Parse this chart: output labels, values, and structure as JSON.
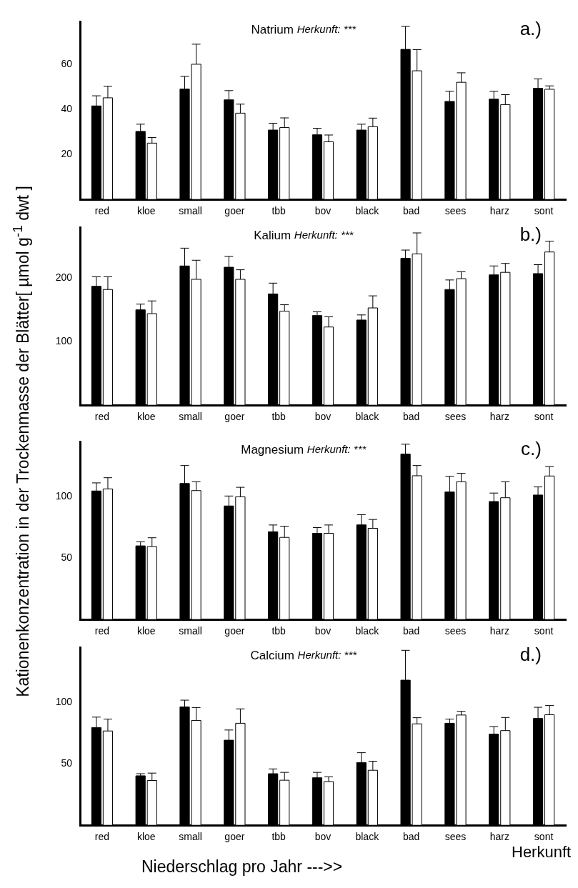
{
  "chart_data": [
    {
      "type": "bar",
      "title": "Natrium",
      "subtitle": "Herkunft: ***",
      "ylabel": "Kationenkonzentration in der Trockenmasse der Blätter[ µmol g$^{-1}$ dwt ]",
      "annotations": [
        "a.)"
      ],
      "categories": [
        "red",
        "kloe",
        "small",
        "goer",
        "tbb",
        "bov",
        "black",
        "bad",
        "sees",
        "harz",
        "sont"
      ],
      "ylim": [
        0,
        79
      ],
      "yticks": [
        20,
        40,
        60
      ],
      "grid": false,
      "legend": false,
      "series": [
        {
          "color": "#000000",
          "values": [
            41.5,
            30.2,
            49,
            44.2,
            30.8,
            28.7,
            30.8,
            66.6,
            43.5,
            44.5,
            49.3
          ],
          "errors": [
            [
              41.5,
              46
            ],
            [
              30.2,
              33.4
            ],
            [
              49,
              54.6
            ],
            [
              44.2,
              48.3
            ],
            [
              30.8,
              33.8
            ],
            [
              28.7,
              31.6
            ],
            [
              30.8,
              33.4
            ],
            [
              66.6,
              76.8
            ],
            [
              43.5,
              48
            ],
            [
              44.5,
              48
            ],
            [
              49.3,
              53.5
            ]
          ]
        },
        {
          "color": "#ffffff",
          "values": [
            45.1,
            25,
            60,
            38.3,
            31.9,
            25.6,
            32.3,
            57.1,
            52,
            42.1,
            48.9
          ],
          "errors": [
            [
              45.1,
              50.2
            ],
            [
              25,
              27.5
            ],
            [
              60,
              68.9
            ],
            [
              38.3,
              42.3
            ],
            [
              31.9,
              36.2
            ],
            [
              25.6,
              28.6
            ],
            [
              32.3,
              36.1
            ],
            [
              57.1,
              66.5
            ],
            [
              52,
              56.2
            ],
            [
              42.1,
              46.5
            ],
            [
              48.9,
              50.4
            ]
          ]
        }
      ]
    },
    {
      "type": "bar",
      "title": "Kalium",
      "subtitle": "Herkunft: ***",
      "annotations": [
        "b.)"
      ],
      "categories": [
        "red",
        "kloe",
        "small",
        "goer",
        "tbb",
        "bov",
        "black",
        "bad",
        "sees",
        "harz",
        "sont"
      ],
      "ylim": [
        0,
        280
      ],
      "yticks": [
        100,
        200
      ],
      "grid": false,
      "legend": false,
      "series": [
        {
          "color": "#000000",
          "values": [
            187,
            150,
            219,
            217,
            175,
            141,
            134,
            231,
            182,
            205,
            207
          ],
          "errors": [
            [
              187,
              202
            ],
            [
              150,
              159
            ],
            [
              219,
              247
            ],
            [
              217,
              234
            ],
            [
              175,
              192
            ],
            [
              141,
              147
            ],
            [
              134,
              142
            ],
            [
              231,
              244
            ],
            [
              182,
              197
            ],
            [
              205,
              219
            ],
            [
              207,
              221
            ]
          ]
        },
        {
          "color": "#ffffff",
          "values": [
            182,
            144,
            198,
            198,
            148,
            123,
            153,
            238,
            199,
            209,
            241
          ],
          "errors": [
            [
              182,
              202
            ],
            [
              144,
              164
            ],
            [
              198,
              228
            ],
            [
              198,
              213
            ],
            [
              148,
              158
            ],
            [
              123,
              139
            ],
            [
              153,
              172
            ],
            [
              238,
              271
            ],
            [
              199,
              210
            ],
            [
              209,
              223
            ],
            [
              241,
              258
            ]
          ]
        }
      ]
    },
    {
      "type": "bar",
      "title": "Magnesium",
      "subtitle": "Herkunft: ***",
      "annotations": [
        "c.)"
      ],
      "categories": [
        "red",
        "kloe",
        "small",
        "goer",
        "tbb",
        "bov",
        "black",
        "bad",
        "sees",
        "harz",
        "sont"
      ],
      "ylim": [
        0,
        145
      ],
      "yticks": [
        50,
        100
      ],
      "grid": false,
      "legend": false,
      "series": [
        {
          "color": "#000000",
          "values": [
            104.7,
            60,
            110.8,
            92.5,
            71.5,
            70.2,
            77.1,
            134.8,
            103.9,
            96.1,
            101.4
          ],
          "errors": [
            [
              104.7,
              111.3
            ],
            [
              60,
              63.3
            ],
            [
              110.8,
              125.4
            ],
            [
              92.5,
              100.6
            ],
            [
              71.5,
              77
            ],
            [
              70.2,
              74.9
            ],
            [
              77.1,
              85.4
            ],
            [
              134.8,
              142.8
            ],
            [
              103.9,
              116.6
            ],
            [
              96.1,
              103
            ],
            [
              101.4,
              108
            ]
          ]
        },
        {
          "color": "#ffffff",
          "values": [
            106.4,
            59.4,
            105,
            100,
            66.9,
            70.2,
            74.3,
            117.1,
            112.2,
            99.2,
            116.9
          ],
          "errors": [
            [
              106.4,
              115.5
            ],
            [
              59.4,
              66.6
            ],
            [
              105,
              112.2
            ],
            [
              100,
              107.7
            ],
            [
              66.9,
              76
            ],
            [
              70.2,
              77
            ],
            [
              74.3,
              81.5
            ],
            [
              117.1,
              125.4
            ],
            [
              112.2,
              119
            ],
            [
              99.2,
              112.2
            ],
            [
              116.9,
              124.6
            ]
          ]
        }
      ]
    },
    {
      "type": "bar",
      "title": "Calcium",
      "subtitle": "Herkunft: ***",
      "xlabel": "Niederschlag pro Jahr --->>",
      "annotations": [
        "d.)",
        "Herkunft"
      ],
      "categories": [
        "red",
        "kloe",
        "small",
        "goer",
        "tbb",
        "bov",
        "black",
        "bad",
        "sees",
        "harz",
        "sont"
      ],
      "ylim": [
        0,
        145
      ],
      "yticks": [
        50,
        100
      ],
      "grid": false,
      "legend": false,
      "series": [
        {
          "color": "#000000",
          "values": [
            79.6,
            40.3,
            96.4,
            69.3,
            42,
            38.7,
            51.1,
            118.2,
            83.1,
            74.3,
            87
          ],
          "errors": [
            [
              79.6,
              88.1
            ],
            [
              40.3,
              42
            ],
            [
              96.4,
              101.9
            ],
            [
              69.3,
              77.6
            ],
            [
              42,
              45.9
            ],
            [
              38.7,
              43.1
            ],
            [
              51.1,
              59.1
            ],
            [
              118.2,
              142.5
            ],
            [
              83.1,
              86.5
            ],
            [
              74.3,
              80.4
            ],
            [
              87,
              96.1
            ]
          ]
        },
        {
          "color": "#ffffff",
          "values": [
            76.8,
            36.5,
            85.4,
            83.1,
            36.7,
            35.6,
            44.8,
            82.6,
            89.8,
            77.1,
            90
          ],
          "errors": [
            [
              76.8,
              86.5
            ],
            [
              36.5,
              42.5
            ],
            [
              85.4,
              95.9
            ],
            [
              83.1,
              94.8
            ],
            [
              36.7,
              43.1
            ],
            [
              35.6,
              39.5
            ],
            [
              44.8,
              52.2
            ],
            [
              82.6,
              87.6
            ],
            [
              89.8,
              92.8
            ],
            [
              77.1,
              87.8
            ],
            [
              90,
              97.5
            ]
          ]
        }
      ]
    }
  ]
}
